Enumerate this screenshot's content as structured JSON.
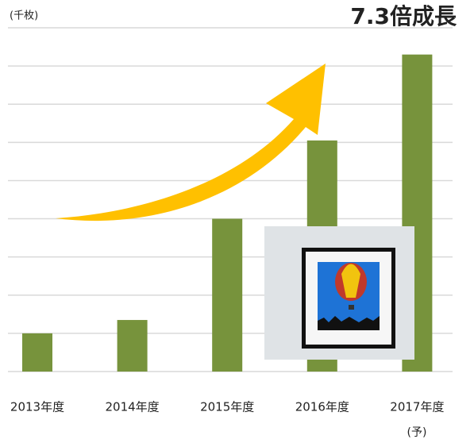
{
  "chart_data": {
    "type": "bar",
    "title": "7.3倍成長",
    "unit_label": "(千枚)",
    "categories": [
      "2013年度",
      "2014年度",
      "2015年度",
      "2016年度",
      "2017年度"
    ],
    "forecast_label": "(予)",
    "values": [
      1,
      1.35,
      4,
      6.05,
      8.3
    ],
    "color": "#77933c",
    "ylim": [
      0,
      9
    ],
    "yticks": [
      0,
      1,
      2,
      3,
      4,
      5,
      6,
      7,
      8,
      9
    ],
    "grid": true
  }
}
